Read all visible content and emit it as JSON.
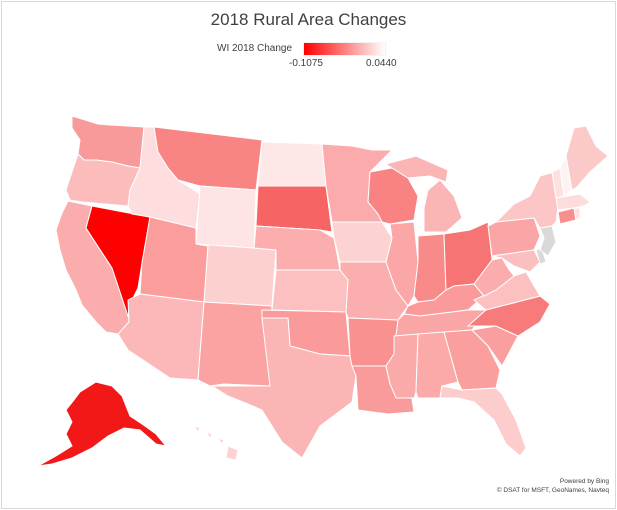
{
  "title": "2018 Rural Area Changes",
  "legend": {
    "label": "WI 2018 Change",
    "min": "-0.1075",
    "max": "0.0440",
    "min_value": -0.1075,
    "max_value": 0.044,
    "color_low": "#ff0000",
    "color_high": "#ffffff"
  },
  "no_data_color": "#d9d9d9",
  "credits": {
    "line1": "Powered by Bing",
    "line2": "© DSAT for MSFT, GeoNames, Navteq"
  },
  "states": [
    {
      "id": "WA",
      "fill": "#f99a9a"
    },
    {
      "id": "OR",
      "fill": "#fcbcbc"
    },
    {
      "id": "CA",
      "fill": "#fbadad"
    },
    {
      "id": "NV",
      "fill": "#ff0000"
    },
    {
      "id": "ID",
      "fill": "#fddddd"
    },
    {
      "id": "MT",
      "fill": "#f98484"
    },
    {
      "id": "WY",
      "fill": "#fee4e4"
    },
    {
      "id": "UT",
      "fill": "#fb9d9d"
    },
    {
      "id": "AZ",
      "fill": "#fcb8b8"
    },
    {
      "id": "CO",
      "fill": "#fdd0d0"
    },
    {
      "id": "NM",
      "fill": "#fba3a3"
    },
    {
      "id": "ND",
      "fill": "#fee7e7"
    },
    {
      "id": "SD",
      "fill": "#f76464"
    },
    {
      "id": "NE",
      "fill": "#fcadad"
    },
    {
      "id": "KS",
      "fill": "#fcc0c0"
    },
    {
      "id": "OK",
      "fill": "#fa9a9a"
    },
    {
      "id": "TX",
      "fill": "#fcb5b5"
    },
    {
      "id": "MN",
      "fill": "#fbabab"
    },
    {
      "id": "IA",
      "fill": "#fdd2d2"
    },
    {
      "id": "MO",
      "fill": "#fbaeae"
    },
    {
      "id": "AR",
      "fill": "#f99191"
    },
    {
      "id": "LA",
      "fill": "#f99b9b"
    },
    {
      "id": "WI",
      "fill": "#f98383"
    },
    {
      "id": "IL",
      "fill": "#fba7a7"
    },
    {
      "id": "MI",
      "fill": "#fcb5b5"
    },
    {
      "id": "IN",
      "fill": "#f98a8a"
    },
    {
      "id": "OH",
      "fill": "#f77474"
    },
    {
      "id": "KY",
      "fill": "#fa9a9a"
    },
    {
      "id": "TN",
      "fill": "#fba6a6"
    },
    {
      "id": "MS",
      "fill": "#fbaaaa"
    },
    {
      "id": "AL",
      "fill": "#fba9a9"
    },
    {
      "id": "GA",
      "fill": "#fa9e9e"
    },
    {
      "id": "FL",
      "fill": "#fdcdcd"
    },
    {
      "id": "SC",
      "fill": "#fa9f9f"
    },
    {
      "id": "NC",
      "fill": "#f77b7b"
    },
    {
      "id": "VA",
      "fill": "#fcc0c0"
    },
    {
      "id": "WV",
      "fill": "#fbadad"
    },
    {
      "id": "PA",
      "fill": "#fba6a6"
    },
    {
      "id": "NY",
      "fill": "#fcc6c6"
    },
    {
      "id": "VT",
      "fill": "#fde0e0"
    },
    {
      "id": "NH",
      "fill": "#fff2f2"
    },
    {
      "id": "ME",
      "fill": "#fcc9c9"
    },
    {
      "id": "MA",
      "fill": "#fddcdc"
    },
    {
      "id": "CT",
      "fill": "#f98e8e"
    },
    {
      "id": "RI",
      "fill": "#fde0e0"
    },
    {
      "id": "NJ",
      "fill": "#d9d9d9"
    },
    {
      "id": "DE",
      "fill": "#d9d9d9"
    },
    {
      "id": "MD",
      "fill": "#fcbfbf"
    },
    {
      "id": "AK",
      "fill": "#f21818"
    },
    {
      "id": "HI",
      "fill": "#fdd2d2"
    }
  ]
}
